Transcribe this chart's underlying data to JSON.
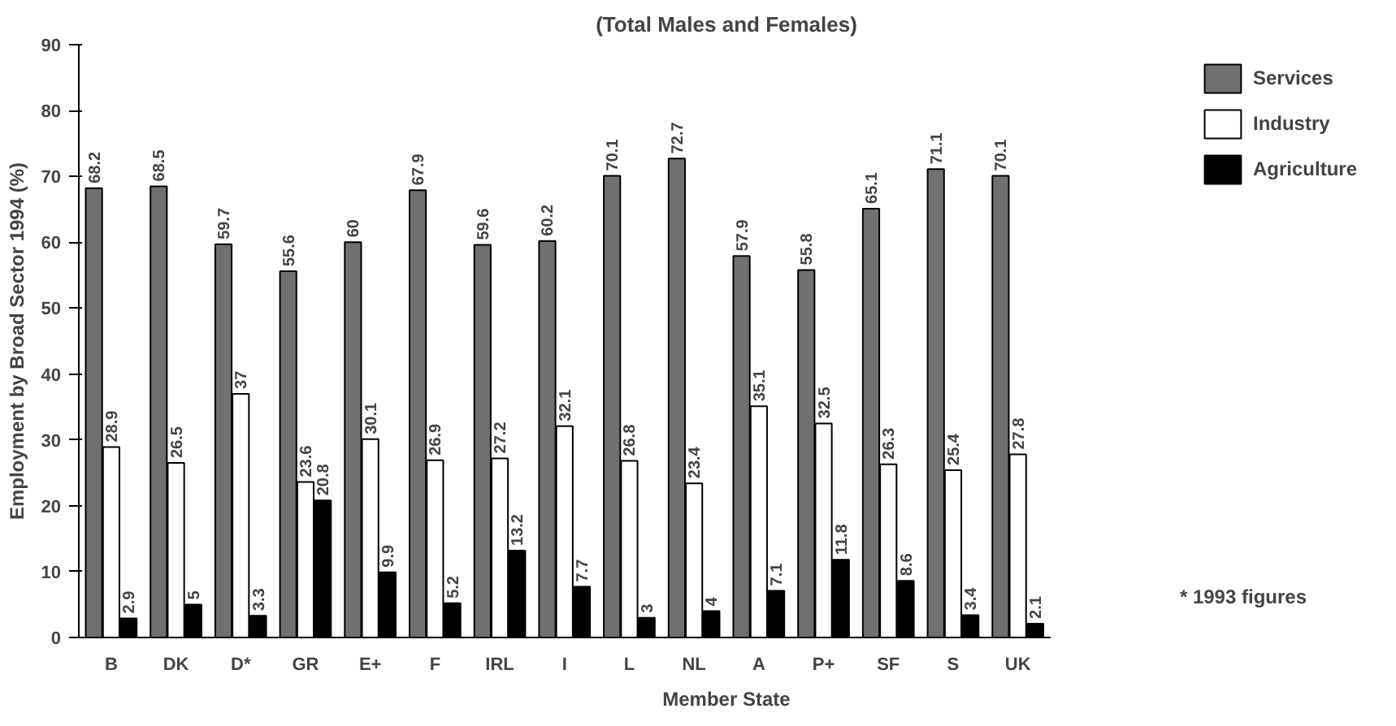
{
  "chart_data": {
    "type": "bar",
    "title": "(Total Males and Females)",
    "xlabel": "Member State",
    "ylabel": "Employment by Broad Sector 1994 (%)",
    "categories": [
      "B",
      "DK",
      "D*",
      "GR",
      "E+",
      "F",
      "IRL",
      "I",
      "L",
      "NL",
      "A",
      "P+",
      "SF",
      "S",
      "UK"
    ],
    "series": [
      {
        "name": "Services",
        "color": "#707070",
        "values": [
          68.2,
          68.5,
          59.7,
          55.6,
          60,
          67.9,
          59.6,
          60.2,
          70.1,
          72.7,
          57.9,
          55.8,
          65.1,
          71.1,
          70.1
        ]
      },
      {
        "name": "Industry",
        "color": "#ffffff",
        "values": [
          28.9,
          26.5,
          37,
          23.6,
          30.1,
          26.9,
          27.2,
          32.1,
          26.8,
          23.4,
          35.1,
          32.5,
          26.3,
          25.4,
          27.8
        ]
      },
      {
        "name": "Agriculture",
        "color": "#000000",
        "values": [
          2.9,
          5,
          3.3,
          20.8,
          9.9,
          5.2,
          13.2,
          7.7,
          3,
          4,
          7.1,
          11.8,
          8.6,
          3.4,
          2.1
        ]
      }
    ],
    "ylim": [
      0,
      90
    ],
    "yticks": [
      0,
      10,
      20,
      30,
      40,
      50,
      60,
      70,
      80,
      90
    ],
    "grid": false,
    "legend": "top right",
    "data_labels": true,
    "annotations": [
      "* 1993 figures"
    ]
  }
}
